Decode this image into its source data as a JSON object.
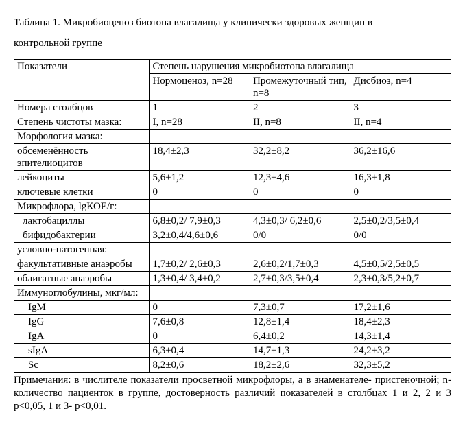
{
  "title_line1": "Таблица 1. Микробиоценоз биотопа влагалища у клинически здоровых женщин в",
  "title_line2": "контрольной группе",
  "header": {
    "indicators": "Показатели",
    "group_header": "Степень нарушения микробиотопа влагалища",
    "col1": "Нормоценоз, n=28",
    "col2": "Промежуточный тип, n=8",
    "col3": "Дисбиоз, n=4"
  },
  "rows": {
    "colnums_label": "Номера столбцов",
    "colnums": {
      "c1": "1",
      "c2": "2",
      "c3": "3"
    },
    "purity_label": "Степень чистоты мазка:",
    "purity": {
      "c1": "I, n=28",
      "c2": "II, n=8",
      "c3": "II, n=4"
    },
    "morph_label": "Морфология мазка:",
    "epithelia_label": "обсеменённость эпителиоцитов",
    "epithelia": {
      "c1": "18,4±2,3",
      "c2": "32,2±8,2",
      "c3": "36,2±16,6"
    },
    "leuko_label": "лейкоциты",
    "leuko": {
      "c1": "5,6±1,2",
      "c2": "12,3±4,6",
      "c3": "16,3±1,8"
    },
    "key_label": "ключевые клетки",
    "key": {
      "c1": "0",
      "c2": "0",
      "c3": "0"
    },
    "microflora_label": "Микрофлора, lgКОЕ/г:",
    "lacto_label": "лактобациллы",
    "lacto": {
      "c1": "6,8±0,2/ 7,9±0,3",
      "c2": "4,3±0,3/ 6,2±0,6",
      "c3": "2,5±0,2/3,5±0,4"
    },
    "bifido_label": "бифидобактерии",
    "bifido": {
      "c1": "3,2±0,4/4,6±0,6",
      "c2": "0/0",
      "c3": "0/0"
    },
    "cond_label": "условно-патогенная:",
    "fac_label": "факультативные анаэробы",
    "fac": {
      "c1": "1,7±0,2/ 2,6±0,3",
      "c2": "2,6±0,2/1,7±0,3",
      "c3": "4,5±0,5/2,5±0,5"
    },
    "obl_label": "облигатные анаэробы",
    "obl": {
      "c1": "1,3±0,4/ 3,4±0,2",
      "c2": "2,7±0,3/3,5±0,4",
      "c3": "2,3±0,3/5,2±0,7"
    },
    "ig_label": "Иммуноглобулины, мкг/мл:",
    "igm_label": "IgM",
    "igm": {
      "c1": "0",
      "c2": "7,3±0,7",
      "c3": "17,2±1,6"
    },
    "igg_label": "IgG",
    "igg": {
      "c1": "7,6±0,8",
      "c2": "12,8±1,4",
      "c3": "18,4±2,3"
    },
    "iga_label": "IgA",
    "iga": {
      "c1": "0",
      "c2": "6,4±0,2",
      "c3": "14,3±1,4"
    },
    "siga_label": "sIgA",
    "siga": {
      "c1": "6,3±0,4",
      "c2": "14,7±1,3",
      "c3": "24,2±3,2"
    },
    "sc_label": "Sc",
    "sc": {
      "c1": "8,2±0,6",
      "c2": "18,2±2,6",
      "c3": "32,3±5,2"
    }
  },
  "notesA": "Примечания: в числителе показатели просветной микрофлоры, а в знаменателе- пристеночной; n- количество пациенток в группе, достоверность различий показателей в столбцах 1 и 2, 2 и 3 р",
  "notesB": "<",
  "notesC": "0,05, 1 и 3- р",
  "notesD": "<",
  "notesE": "0,01."
}
